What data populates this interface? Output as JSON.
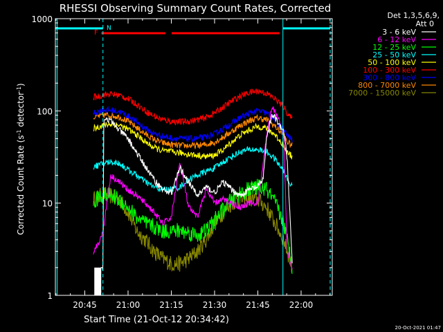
{
  "chart_data": {
    "type": "line",
    "title": "RHESSI Observing Summary Count Rates, Corrected",
    "xlabel": "Start Time (21-Oct-12 20:34:42)",
    "ylabel": "Corrected Count Rate (s⁻¹ detector⁻¹)",
    "ylabel_main": "Corrected Count Rate (s",
    "ylabel_sup1": "-1",
    "ylabel_mid": " detector",
    "ylabel_sup2": "-1",
    "ylabel_end": ")",
    "yscale": "log",
    "xlim": [
      20.58,
      22.18
    ],
    "ylim": [
      1,
      1000
    ],
    "x_ticks": [
      {
        "value": 20.75,
        "label": "20:45"
      },
      {
        "value": 21.0,
        "label": "21:00"
      },
      {
        "value": 21.25,
        "label": "21:15"
      },
      {
        "value": 21.5,
        "label": "21:30"
      },
      {
        "value": 21.75,
        "label": "21:45"
      },
      {
        "value": 22.0,
        "label": "22:00"
      }
    ],
    "y_ticks": [
      {
        "value": 1,
        "label": "1"
      },
      {
        "value": 10,
        "label": "10"
      },
      {
        "value": 100,
        "label": "100"
      },
      {
        "value": 1000,
        "label": "1000"
      }
    ],
    "legend_header": [
      "Det 1,3,5,6,9,",
      "Att 0"
    ],
    "legend_placement": "right",
    "footer": "20-Oct-2021 01:47",
    "flags": {
      "flare_label": "F",
      "night_label": "N",
      "flare_intervals": [
        [
          20.845,
          21.215
        ],
        [
          21.252,
          21.875
        ]
      ],
      "night_intervals": [
        [
          20.58,
          20.855
        ],
        [
          21.895,
          22.168
        ]
      ],
      "vertical_lines": [
        {
          "x": 20.59,
          "style": "solid"
        },
        {
          "x": 20.855,
          "style": "dashed"
        },
        {
          "x": 21.895,
          "style": "solid"
        },
        {
          "x": 22.168,
          "style": "dashed"
        }
      ],
      "flare_color": "#ff0000",
      "night_color": "#00ffff"
    },
    "attenuator_block": {
      "x0": 20.805,
      "x1": 20.845,
      "y_top": 2.0
    },
    "series": [
      {
        "name": "3 - 6 keV",
        "color": "#ffffff",
        "x": [
          20.84,
          20.845,
          20.855,
          20.86,
          20.9,
          20.95,
          21.0,
          21.05,
          21.1,
          21.15,
          21.2,
          21.25,
          21.3,
          21.35,
          21.4,
          21.45,
          21.5,
          21.55,
          21.6,
          21.65,
          21.7,
          21.75,
          21.78,
          21.8,
          21.83,
          21.85,
          21.87,
          21.9,
          21.92,
          21.95
        ],
        "y": [
          2,
          2,
          2,
          85,
          78,
          62,
          50,
          35,
          25,
          18,
          14,
          13,
          24,
          17,
          12,
          15,
          13,
          17,
          14,
          12,
          14,
          15,
          18,
          50,
          88,
          85,
          70,
          60,
          30,
          2
        ]
      },
      {
        "name": "6 - 12 keV",
        "color": "#ff00ff",
        "x": [
          20.8,
          20.84,
          20.855,
          20.9,
          20.95,
          21.0,
          21.05,
          21.1,
          21.15,
          21.2,
          21.25,
          21.3,
          21.35,
          21.4,
          21.45,
          21.5,
          21.55,
          21.6,
          21.65,
          21.7,
          21.75,
          21.8,
          21.83,
          21.85,
          21.87,
          21.9,
          21.92,
          21.95
        ],
        "y": [
          3,
          4,
          5,
          20,
          17,
          14,
          12,
          10,
          8,
          6,
          7,
          28,
          9,
          7,
          14,
          10,
          11,
          10,
          9,
          10,
          10,
          50,
          110,
          95,
          80,
          50,
          3,
          2
        ]
      },
      {
        "name": "12 - 25 keV",
        "color": "#00ff00",
        "x": [
          20.8,
          20.84,
          20.855,
          20.9,
          20.95,
          21.0,
          21.05,
          21.1,
          21.15,
          21.2,
          21.25,
          21.3,
          21.35,
          21.4,
          21.45,
          21.5,
          21.55,
          21.6,
          21.65,
          21.7,
          21.75,
          21.8,
          21.85,
          21.9,
          21.92,
          21.95
        ],
        "y": [
          10,
          12,
          12,
          12,
          11,
          9,
          7,
          6,
          5.5,
          5,
          5,
          5,
          4.8,
          4.5,
          5,
          6.5,
          8.5,
          11,
          13,
          14,
          15,
          14,
          10,
          6,
          4,
          2
        ]
      },
      {
        "name": "25 - 50 keV",
        "color": "#00ffff",
        "x": [
          20.8,
          20.84,
          20.855,
          20.9,
          20.95,
          21.0,
          21.05,
          21.1,
          21.15,
          21.2,
          21.25,
          21.3,
          21.35,
          21.4,
          21.45,
          21.5,
          21.55,
          21.6,
          21.65,
          21.7,
          21.75,
          21.8,
          21.85,
          21.9,
          21.92,
          21.95
        ],
        "y": [
          25,
          26,
          27,
          28,
          27,
          23,
          20,
          17,
          15,
          14,
          14,
          15,
          18,
          20,
          22,
          24,
          28,
          32,
          36,
          38,
          38,
          36,
          30,
          22,
          18,
          15
        ]
      },
      {
        "name": "50 - 100 keV",
        "color": "#ffff00",
        "x": [
          20.8,
          20.84,
          20.855,
          20.9,
          20.95,
          21.0,
          21.05,
          21.1,
          21.15,
          21.2,
          21.25,
          21.3,
          21.35,
          21.4,
          21.45,
          21.5,
          21.55,
          21.6,
          21.65,
          21.7,
          21.75,
          21.8,
          21.85,
          21.9,
          21.92,
          21.95
        ],
        "y": [
          65,
          68,
          70,
          72,
          70,
          63,
          55,
          46,
          40,
          37,
          36,
          35,
          34,
          33,
          32,
          33,
          38,
          46,
          55,
          62,
          68,
          65,
          55,
          42,
          35,
          32
        ]
      },
      {
        "name": "100 - 300 keV",
        "color": "#ff0000",
        "x": [
          20.8,
          20.84,
          20.855,
          20.9,
          20.95,
          21.0,
          21.05,
          21.1,
          21.15,
          21.2,
          21.25,
          21.3,
          21.35,
          21.4,
          21.45,
          21.5,
          21.55,
          21.6,
          21.65,
          21.7,
          21.75,
          21.8,
          21.85,
          21.9,
          21.92,
          21.95
        ],
        "y": [
          140,
          145,
          150,
          152,
          148,
          135,
          118,
          100,
          88,
          80,
          77,
          76,
          77,
          80,
          85,
          95,
          110,
          128,
          145,
          158,
          165,
          155,
          135,
          110,
          95,
          80
        ]
      },
      {
        "name": "300 - 800 keV",
        "color": "#0000ff",
        "x": [
          20.8,
          20.84,
          20.855,
          20.9,
          20.95,
          21.0,
          21.05,
          21.1,
          21.15,
          21.2,
          21.25,
          21.3,
          21.35,
          21.4,
          21.45,
          21.5,
          21.55,
          21.6,
          21.65,
          21.7,
          21.75,
          21.8,
          21.85,
          21.9,
          21.92,
          21.95
        ],
        "y": [
          95,
          100,
          102,
          102,
          98,
          88,
          76,
          64,
          57,
          53,
          51,
          50,
          50,
          50,
          52,
          56,
          64,
          74,
          85,
          94,
          100,
          95,
          80,
          62,
          54,
          48
        ]
      },
      {
        "name": "800 - 7000 keV",
        "color": "#ff8800",
        "x": [
          20.8,
          20.84,
          20.855,
          20.9,
          20.95,
          21.0,
          21.05,
          21.1,
          21.15,
          21.2,
          21.25,
          21.3,
          21.35,
          21.4,
          21.45,
          21.5,
          21.55,
          21.6,
          21.65,
          21.7,
          21.75,
          21.8,
          21.85,
          21.9,
          21.92,
          21.95
        ],
        "y": [
          85,
          88,
          90,
          90,
          86,
          77,
          66,
          56,
          49,
          45,
          43,
          42,
          42,
          42,
          43,
          46,
          52,
          60,
          70,
          78,
          84,
          80,
          68,
          54,
          46,
          42
        ]
      },
      {
        "name": "7000 - 15000 keV",
        "color": "#888800",
        "x": [
          20.8,
          20.84,
          20.855,
          20.9,
          20.95,
          21.0,
          21.05,
          21.1,
          21.15,
          21.2,
          21.25,
          21.3,
          21.35,
          21.4,
          21.45,
          21.5,
          21.55,
          21.6,
          21.65,
          21.7,
          21.75,
          21.8,
          21.85,
          21.9,
          21.92,
          21.95
        ],
        "y": [
          11,
          12,
          12.5,
          12,
          11,
          8,
          5,
          4,
          3,
          2.5,
          2.2,
          2.2,
          2.5,
          3,
          4,
          6,
          8,
          10,
          11,
          11,
          11,
          9,
          6,
          4,
          3,
          2
        ]
      }
    ]
  }
}
